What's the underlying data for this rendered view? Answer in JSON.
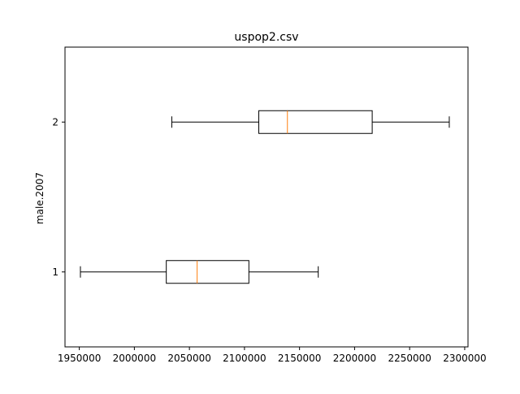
{
  "chart_data": {
    "type": "boxplot",
    "orientation": "horizontal",
    "title": "uspop2.csv",
    "xlabel": "",
    "ylabel": "male.2007",
    "xlim": [
      1937000,
      2303000
    ],
    "ylim": [
      0.5,
      2.5
    ],
    "x_ticks": [
      1950000,
      2000000,
      2050000,
      2100000,
      2150000,
      2200000,
      2250000,
      2300000
    ],
    "x_tick_labels": [
      "1950000",
      "2000000",
      "2050000",
      "2100000",
      "2150000",
      "2200000",
      "2250000",
      "2300000"
    ],
    "y_ticks": [
      1,
      2
    ],
    "y_tick_labels": [
      "1",
      "2"
    ],
    "grid": false,
    "legend": "none",
    "box_color": "#000000",
    "median_color": "#ff7f0e",
    "series": [
      {
        "position": 1,
        "whisker_low": 1951000,
        "q1": 2029000,
        "median": 2057000,
        "q3": 2104000,
        "whisker_high": 2167000
      },
      {
        "position": 2,
        "whisker_low": 2034000,
        "q1": 2113000,
        "median": 2139000,
        "q3": 2216000,
        "whisker_high": 2286000
      }
    ]
  }
}
